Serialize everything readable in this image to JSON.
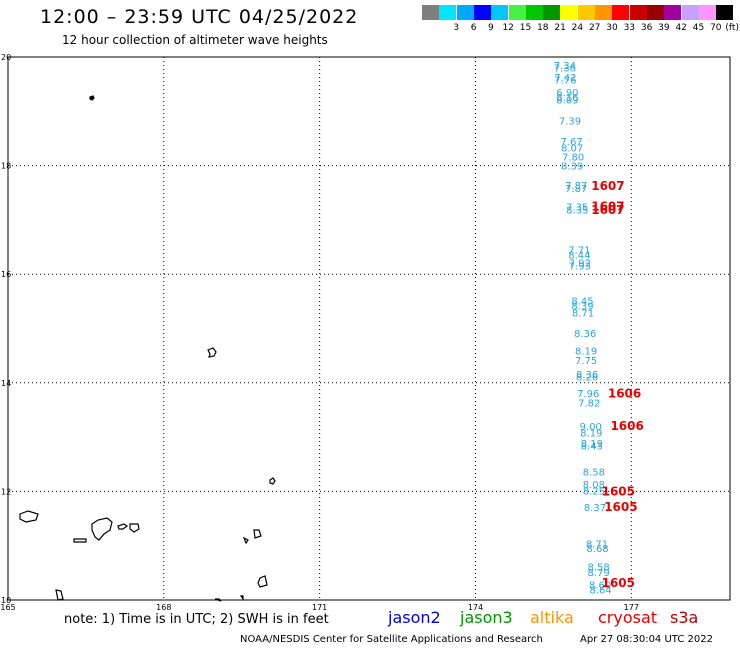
{
  "title": "12:00 – 23:59 UTC 04/25/2022",
  "subtitle": "12 hour collection of altimeter wave heights",
  "legend": {
    "unit": "(ft)",
    "items": [
      {
        "label": "",
        "color": "#7f7f7f"
      },
      {
        "label": "3",
        "color": "#00e6ff"
      },
      {
        "label": "6",
        "color": "#00a8ff"
      },
      {
        "label": "9",
        "color": "#0000ff"
      },
      {
        "label": "12",
        "color": "#00c8ff"
      },
      {
        "label": "15",
        "color": "#46f046"
      },
      {
        "label": "18",
        "color": "#00c800"
      },
      {
        "label": "21",
        "color": "#009600"
      },
      {
        "label": "24",
        "color": "#ffff00"
      },
      {
        "label": "27",
        "color": "#ffc800"
      },
      {
        "label": "30",
        "color": "#ff9600"
      },
      {
        "label": "33",
        "color": "#ff0000"
      },
      {
        "label": "36",
        "color": "#c80000"
      },
      {
        "label": "39",
        "color": "#960000"
      },
      {
        "label": "42",
        "color": "#a000a0"
      },
      {
        "label": "45",
        "color": "#c8a0ff"
      },
      {
        "label": "70",
        "color": "#ff96ff"
      },
      {
        "label": "",
        "color": "#000000"
      }
    ]
  },
  "lat_labels": [
    "20",
    "18",
    "16",
    "14",
    "12",
    "10"
  ],
  "lon_labels": [
    "165",
    "168",
    "171",
    "174",
    "177"
  ],
  "wave_color": "#28a8dc",
  "time_color": "#e60000",
  "wave_heights": [
    {
      "v": "7.34",
      "lon": 175.72,
      "lat": 19.78
    },
    {
      "v": "7.36",
      "lon": 175.72,
      "lat": 19.73
    },
    {
      "v": "7.42",
      "lon": 175.73,
      "lat": 19.56
    },
    {
      "v": "7.76",
      "lon": 175.73,
      "lat": 19.51
    },
    {
      "v": "6.90",
      "lon": 175.77,
      "lat": 19.28
    },
    {
      "v": "8.16",
      "lon": 175.77,
      "lat": 19.19
    },
    {
      "v": "8.09",
      "lon": 175.77,
      "lat": 19.14
    },
    {
      "v": "7.39",
      "lon": 175.82,
      "lat": 18.76
    },
    {
      "v": "7.67",
      "lon": 175.85,
      "lat": 18.38
    },
    {
      "v": "8.07",
      "lon": 175.86,
      "lat": 18.26
    },
    {
      "v": "7.80",
      "lon": 175.88,
      "lat": 18.09
    },
    {
      "v": "8.39",
      "lon": 175.86,
      "lat": 17.93
    },
    {
      "v": "7.87",
      "lon": 175.94,
      "lat": 17.57
    },
    {
      "v": "7.87",
      "lon": 175.94,
      "lat": 17.51
    },
    {
      "v": "7.35",
      "lon": 175.96,
      "lat": 17.17
    },
    {
      "v": "8.35",
      "lon": 175.96,
      "lat": 17.12
    },
    {
      "v": "7.71",
      "lon": 176.0,
      "lat": 16.38
    },
    {
      "v": "8.44",
      "lon": 176.0,
      "lat": 16.29
    },
    {
      "v": "7.92",
      "lon": 176.01,
      "lat": 16.14
    },
    {
      "v": "7.93",
      "lon": 176.01,
      "lat": 16.09
    },
    {
      "v": "8.45",
      "lon": 176.06,
      "lat": 15.44
    },
    {
      "v": "8.39",
      "lon": 176.06,
      "lat": 15.35
    },
    {
      "v": "8.71",
      "lon": 176.07,
      "lat": 15.22
    },
    {
      "v": "8.36",
      "lon": 176.11,
      "lat": 14.84
    },
    {
      "v": "8.19",
      "lon": 176.13,
      "lat": 14.52
    },
    {
      "v": "7.75",
      "lon": 176.13,
      "lat": 14.35
    },
    {
      "v": "8.36",
      "lon": 176.15,
      "lat": 14.09
    },
    {
      "v": "8.26",
      "lon": 176.15,
      "lat": 14.04
    },
    {
      "v": "7.96",
      "lon": 176.17,
      "lat": 13.74
    },
    {
      "v": "7.82",
      "lon": 176.19,
      "lat": 13.56
    },
    {
      "v": "9.00",
      "lon": 176.22,
      "lat": 13.13
    },
    {
      "v": "8.19",
      "lon": 176.23,
      "lat": 13.01
    },
    {
      "v": "8.19",
      "lon": 176.24,
      "lat": 12.82
    },
    {
      "v": "8.43",
      "lon": 176.24,
      "lat": 12.77
    },
    {
      "v": "8.58",
      "lon": 176.28,
      "lat": 12.29
    },
    {
      "v": "8.08",
      "lon": 176.28,
      "lat": 12.06
    },
    {
      "v": "8.25",
      "lon": 176.28,
      "lat": 11.94
    },
    {
      "v": "8.37",
      "lon": 176.3,
      "lat": 11.64
    },
    {
      "v": "8.71",
      "lon": 176.34,
      "lat": 10.97
    },
    {
      "v": "8.68",
      "lon": 176.35,
      "lat": 10.88
    },
    {
      "v": "8.58",
      "lon": 176.37,
      "lat": 10.54
    },
    {
      "v": "8.79",
      "lon": 176.37,
      "lat": 10.44
    },
    {
      "v": "8.60",
      "lon": 176.4,
      "lat": 10.21
    },
    {
      "v": "8.64",
      "lon": 176.41,
      "lat": 10.12
    }
  ],
  "times": [
    {
      "v": "1607",
      "lon": 176.55,
      "lat": 17.55
    },
    {
      "v": "1607",
      "lon": 176.55,
      "lat": 17.17
    },
    {
      "v": "1607",
      "lon": 176.55,
      "lat": 17.11
    },
    {
      "v": "1606",
      "lon": 176.87,
      "lat": 13.73
    },
    {
      "v": "1606",
      "lon": 176.92,
      "lat": 13.13
    },
    {
      "v": "1605",
      "lon": 176.75,
      "lat": 11.92
    },
    {
      "v": "1605",
      "lon": 176.8,
      "lat": 11.64
    },
    {
      "v": "1605",
      "lon": 176.75,
      "lat": 10.24
    }
  ],
  "note": "note: 1) Time is in UTC; 2) SWH is in feet",
  "satellites": [
    {
      "name": "jason2",
      "color": "#0000dc"
    },
    {
      "name": "jason3",
      "color": "#009600"
    },
    {
      "name": "altika",
      "color": "#ff9600"
    },
    {
      "name": "cryosat",
      "color": "#e60000"
    },
    {
      "name": "s3a",
      "color": "#b40000"
    }
  ],
  "credit": "NOAA/NESDIS Center for Satellite Applications and Research",
  "timestamp": "Apr 27 08:30:04 UTC 2022"
}
